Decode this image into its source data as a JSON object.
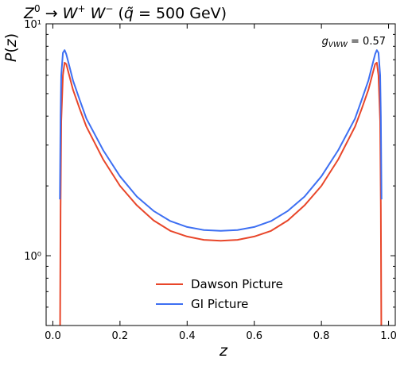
{
  "chart_data": {
    "type": "line",
    "title": "Z⁰ → W⁺ W⁻ (q̃ = 500 GeV)",
    "xlabel": "z",
    "ylabel": "P(z)",
    "xlim": [
      -0.02,
      1.02
    ],
    "ylim": [
      0.5,
      10
    ],
    "yscale": "log",
    "grid": false,
    "legend_position": "lower-center",
    "x_ticks": [
      0.0,
      0.2,
      0.4,
      0.6,
      0.8,
      1.0
    ],
    "x_tick_labels": [
      "0.0",
      "0.2",
      "0.4",
      "0.6",
      "0.8",
      "1.0"
    ],
    "y_ticks": [
      1,
      10
    ],
    "y_tick_labels": [
      "10⁰",
      "10¹"
    ],
    "annotation": "g_VWW = 0.57",
    "x": [
      0.021,
      0.023,
      0.025,
      0.03,
      0.035,
      0.04,
      0.05,
      0.06,
      0.08,
      0.1,
      0.15,
      0.2,
      0.25,
      0.3,
      0.35,
      0.4,
      0.45,
      0.5,
      0.55,
      0.6,
      0.65,
      0.7,
      0.75,
      0.8,
      0.85,
      0.9,
      0.92,
      0.94,
      0.95,
      0.96,
      0.965,
      0.97,
      0.975,
      0.977,
      0.979
    ],
    "series": [
      {
        "name": "Dawson Picture",
        "color": "#e8462a",
        "values": [
          0.3,
          1.6,
          3.8,
          6.0,
          6.8,
          6.7,
          5.9,
          5.2,
          4.3,
          3.6,
          2.6,
          2.0,
          1.65,
          1.42,
          1.28,
          1.21,
          1.17,
          1.16,
          1.17,
          1.21,
          1.28,
          1.42,
          1.65,
          2.0,
          2.6,
          3.6,
          4.3,
          5.2,
          5.9,
          6.7,
          6.8,
          6.0,
          3.8,
          1.6,
          0.3
        ]
      },
      {
        "name": "GI Picture",
        "color": "#3d6ff2",
        "values": [
          1.75,
          4.0,
          6.0,
          7.5,
          7.7,
          7.4,
          6.5,
          5.7,
          4.7,
          3.9,
          2.85,
          2.2,
          1.8,
          1.56,
          1.41,
          1.33,
          1.29,
          1.28,
          1.29,
          1.33,
          1.41,
          1.56,
          1.8,
          2.2,
          2.85,
          3.9,
          4.7,
          5.7,
          6.5,
          7.4,
          7.7,
          7.5,
          6.0,
          4.0,
          1.75
        ]
      }
    ]
  }
}
